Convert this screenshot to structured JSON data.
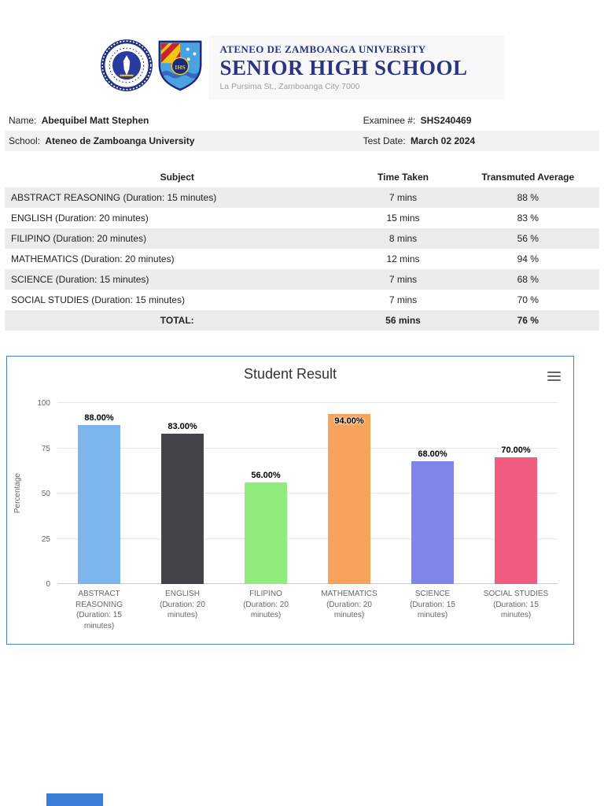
{
  "header": {
    "university": "ATENEO DE ZAMBOANGA UNIVERSITY",
    "school": "SENIOR HIGH SCHOOL",
    "address": "La Pursima St., Zamboanga City 7000",
    "crest_monogram": "IHS",
    "left_logo": "ateneo-university-seal",
    "right_logo": "senior-high-school-crest"
  },
  "student": {
    "name_label": "Name:",
    "name": "Abequibel Matt Stephen",
    "examinee_label": "Examinee #:",
    "examinee_no": "SHS240469",
    "school_label": "School:",
    "school": "Ateneo de Zamboanga University",
    "test_date_label": "Test Date:",
    "test_date": "March 02 2024"
  },
  "results_table": {
    "columns": [
      "Subject",
      "Time Taken",
      "Transmuted Average"
    ],
    "rows": [
      {
        "subject": "ABSTRACT REASONING (Duration: 15 minutes)",
        "time": "7 mins",
        "average": "88 %"
      },
      {
        "subject": "ENGLISH (Duration: 20 minutes)",
        "time": "15 mins",
        "average": "83 %"
      },
      {
        "subject": "FILIPINO (Duration: 20 minutes)",
        "time": "8 mins",
        "average": "56 %"
      },
      {
        "subject": "MATHEMATICS (Duration: 20 minutes)",
        "time": "12 mins",
        "average": "94 %"
      },
      {
        "subject": "SCIENCE (Duration: 15 minutes)",
        "time": "7 mins",
        "average": "68 %"
      },
      {
        "subject": "SOCIAL STUDIES (Duration: 15 minutes)",
        "time": "7 mins",
        "average": "70 %"
      }
    ],
    "total": {
      "label": "TOTAL:",
      "time": "56 mins",
      "average": "76 %"
    }
  },
  "chart_data": {
    "type": "bar",
    "title": "Student Result",
    "categories": [
      "ABSTRACT REASONING (Duration: 15 minutes)",
      "ENGLISH (Duration: 20 minutes)",
      "FILIPINO (Duration: 20 minutes)",
      "MATHEMATICS (Duration: 20 minutes)",
      "SCIENCE (Duration: 15 minutes)",
      "SOCIAL STUDIES (Duration: 15 minutes)"
    ],
    "values": [
      88,
      83,
      56,
      94,
      68,
      70
    ],
    "data_labels": [
      "88.00%",
      "83.00%",
      "56.00%",
      "94.00%",
      "68.00%",
      "70.00%"
    ],
    "label_positions": [
      "above",
      "above",
      "above",
      "inside",
      "above",
      "above"
    ],
    "colors": [
      "#7cb5ec",
      "#434348",
      "#90ed7d",
      "#f7a35c",
      "#8085e9",
      "#f15c80"
    ],
    "xlabel": "",
    "ylabel": "Percentage",
    "yticks": [
      0,
      25,
      50,
      75,
      100
    ],
    "ylim": [
      0,
      100
    ],
    "grid": true,
    "legend": "none",
    "menu_icon": "hamburger-menu-icon"
  },
  "colors": {
    "chart_border": "#4a7ebb",
    "header_navy": "#2b3483",
    "stripe_gray": "#ececec",
    "footer_blue": "#3b7dd8"
  }
}
